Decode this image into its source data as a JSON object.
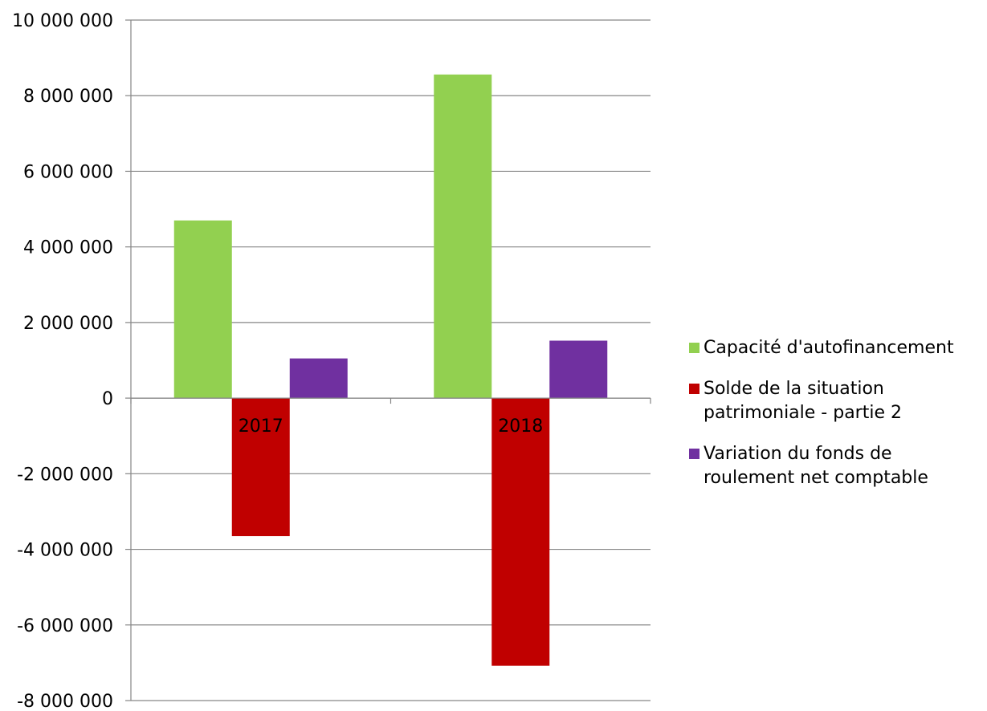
{
  "chart_data": {
    "type": "bar",
    "categories": [
      "2017",
      "2018"
    ],
    "series": [
      {
        "name": "Capacité d'autofinancement",
        "values": [
          4700000,
          8560000
        ],
        "color": "#92D050"
      },
      {
        "name": "Solde de la situation patrimoniale - partie 2",
        "values": [
          -3650000,
          -7080000
        ],
        "color": "#C00000"
      },
      {
        "name": "Variation du fonds de roulement net comptable",
        "values": [
          1050000,
          1520000
        ],
        "color": "#7030A0"
      }
    ],
    "ylim": [
      -8000000,
      10000000
    ],
    "yticks": [
      10000000,
      8000000,
      6000000,
      4000000,
      2000000,
      0,
      -2000000,
      -4000000,
      -6000000,
      -8000000
    ],
    "ytick_labels": [
      "10 000 000",
      "8 000 000",
      "6 000 000",
      "4 000 000",
      "2 000 000",
      "0",
      "-2 000 000",
      "-4 000 000",
      "-6 000 000",
      "-8 000 000"
    ],
    "legend_lines": [
      [
        "Capacité d'autofinancement"
      ],
      [
        "Solde de la situation",
        "patrimoniale - partie 2"
      ],
      [
        "Variation du fonds de",
        "roulement net comptable"
      ]
    ],
    "grid": true,
    "legend_position": "right"
  }
}
